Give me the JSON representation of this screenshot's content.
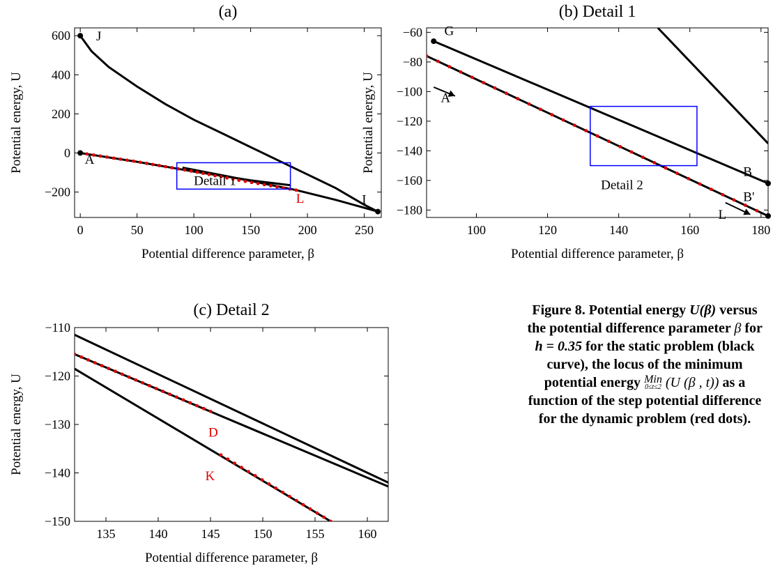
{
  "chart_data": [
    {
      "id": "a",
      "type": "line",
      "title": "(a)",
      "xlabel": "Potential difference parameter, β",
      "ylabel": "Potential energy, U",
      "xlim": [
        -5,
        265
      ],
      "ylim": [
        -330,
        640
      ],
      "xticks": [
        0,
        50,
        100,
        150,
        200,
        250
      ],
      "yticks": [
        -200,
        0,
        200,
        400,
        600
      ],
      "series": [
        {
          "color": "#000000",
          "points": [
            [
              0,
              600
            ],
            [
              10,
              520
            ],
            [
              25,
              440
            ],
            [
              50,
              340
            ],
            [
              75,
              250
            ],
            [
              100,
              170
            ],
            [
              125,
              100
            ],
            [
              150,
              30
            ],
            [
              175,
              -40
            ],
            [
              200,
              -110
            ],
            [
              225,
              -180
            ],
            [
              250,
              -265
            ],
            [
              262,
              -300
            ]
          ]
        },
        {
          "color": "#000000",
          "points": [
            [
              0,
              0
            ],
            [
              50,
              -45
            ],
            [
              100,
              -95
            ],
            [
              150,
              -140
            ],
            [
              185,
              -165
            ]
          ]
        },
        {
          "color": "#000000",
          "points": [
            [
              90,
              -75
            ],
            [
              130,
              -120
            ],
            [
              160,
              -155
            ],
            [
              190,
              -190
            ],
            [
              225,
              -240
            ],
            [
              262,
              -300
            ]
          ]
        }
      ],
      "dots": {
        "color": "#e00000",
        "x_range": [
          0,
          190
        ],
        "count": 34,
        "path": [
          [
            0,
            0
          ],
          [
            50,
            -45
          ],
          [
            100,
            -95
          ],
          [
            140,
            -140
          ],
          [
            190,
            -190
          ]
        ]
      },
      "point_markers": [
        [
          0,
          600
        ],
        [
          0,
          0
        ],
        [
          262,
          -300
        ]
      ],
      "annotations": [
        {
          "text": "J",
          "x": 14,
          "y": 575,
          "color": "#000000"
        },
        {
          "text": "A",
          "x": 4,
          "y": -55,
          "color": "#000000"
        },
        {
          "text": "I",
          "x": 248,
          "y": -260,
          "color": "#000000"
        },
        {
          "text": "L",
          "x": 190,
          "y": -255,
          "color": "#e00000"
        },
        {
          "text": "Detail 1",
          "x": 100,
          "y": -165,
          "color": "#000000"
        }
      ],
      "detail_box": {
        "color": "#0000ff",
        "x": [
          85,
          185
        ],
        "y": [
          -185,
          -50
        ]
      }
    },
    {
      "id": "b",
      "type": "line",
      "title": "(b) Detail 1",
      "xlabel": "Potential difference parameter, β",
      "ylabel": "Potential energy, U",
      "xlim": [
        86,
        182
      ],
      "ylim": [
        -185,
        -57
      ],
      "xticks": [
        100,
        120,
        140,
        160,
        180
      ],
      "yticks": [
        -180,
        -160,
        -140,
        -120,
        -100,
        -80,
        -60
      ],
      "series": [
        {
          "color": "#000000",
          "points": [
            [
              88,
              -66
            ],
            [
              182,
              -162
            ]
          ]
        },
        {
          "color": "#000000",
          "points": [
            [
              86,
              -76
            ],
            [
              182,
              -184
            ]
          ]
        },
        {
          "color": "#000000",
          "points": [
            [
              151,
              -57
            ],
            [
              182,
              -135
            ]
          ]
        }
      ],
      "dots": {
        "color": "#e00000",
        "x_range": [
          86,
          182
        ],
        "count": 30,
        "path": [
          [
            86,
            -76
          ],
          [
            182,
            -184
          ]
        ]
      },
      "point_markers": [
        [
          88,
          -66
        ],
        [
          182,
          -162
        ],
        [
          182,
          -184
        ]
      ],
      "annotations": [
        {
          "text": "G",
          "x": 91,
          "y": -62,
          "color": "#000000"
        },
        {
          "text": "A",
          "x": 90,
          "y": -107,
          "color": "#000000"
        },
        {
          "text": "B",
          "x": 175,
          "y": -157,
          "color": "#000000"
        },
        {
          "text": "B'",
          "x": 175,
          "y": -174,
          "color": "#000000"
        },
        {
          "text": "L",
          "x": 168,
          "y": -186,
          "color": "#000000"
        },
        {
          "text": "Detail 2",
          "x": 135,
          "y": -166,
          "color": "#000000"
        }
      ],
      "arrows": [
        {
          "from": [
            88,
            -97
          ],
          "to": [
            94,
            -103
          ]
        },
        {
          "from": [
            170,
            -175
          ],
          "to": [
            177,
            -183
          ]
        }
      ],
      "detail_box": {
        "color": "#0000ff",
        "x": [
          132,
          162
        ],
        "y": [
          -150,
          -110
        ]
      }
    },
    {
      "id": "c",
      "type": "line",
      "title": "(c) Detail 2",
      "xlabel": "Potential difference parameter, β",
      "ylabel": "Potential energy, U",
      "xlim": [
        132,
        162
      ],
      "ylim": [
        -150,
        -110
      ],
      "xticks": [
        135,
        140,
        145,
        150,
        155,
        160
      ],
      "yticks": [
        -150,
        -140,
        -130,
        -120,
        -110
      ],
      "series": [
        {
          "color": "#000000",
          "points": [
            [
              132,
              -111.5
            ],
            [
              162,
              -142
            ]
          ]
        },
        {
          "color": "#000000",
          "points": [
            [
              132,
              -115.5
            ],
            [
              162,
              -142.8
            ]
          ]
        },
        {
          "color": "#000000",
          "points": [
            [
              132,
              -118.5
            ],
            [
              156.5,
              -150
            ]
          ]
        }
      ],
      "dots": {
        "color": "#e00000",
        "count": 36,
        "path": [
          [
            132,
            -115.5
          ],
          [
            145,
            -127.3
          ],
          [
            145,
            -127.3
          ]
        ],
        "path2": [
          [
            146,
            -136.3
          ],
          [
            156.5,
            -150
          ]
        ]
      },
      "annotations": [
        {
          "text": "D",
          "x": 144.8,
          "y": -132.5,
          "color": "#e00000"
        },
        {
          "text": "K",
          "x": 144.5,
          "y": -141.5,
          "color": "#e00000"
        }
      ]
    }
  ],
  "caption": {
    "line1a": "Figure 8. Potential energy ",
    "line1b": "U(β)",
    "line1c": " versus the potential difference parameter ",
    "beta": "β",
    "line1d": " for ",
    "h": "h = 0.35",
    "line1e": " for the static problem (black curve), the locus of the minimum potential energy ",
    "min": "Min",
    "minsub": "0≤t≤2",
    "expr": "(U (β , t))",
    "line1f": " as a function of the step potential difference for the dynamic problem (red dots)."
  }
}
